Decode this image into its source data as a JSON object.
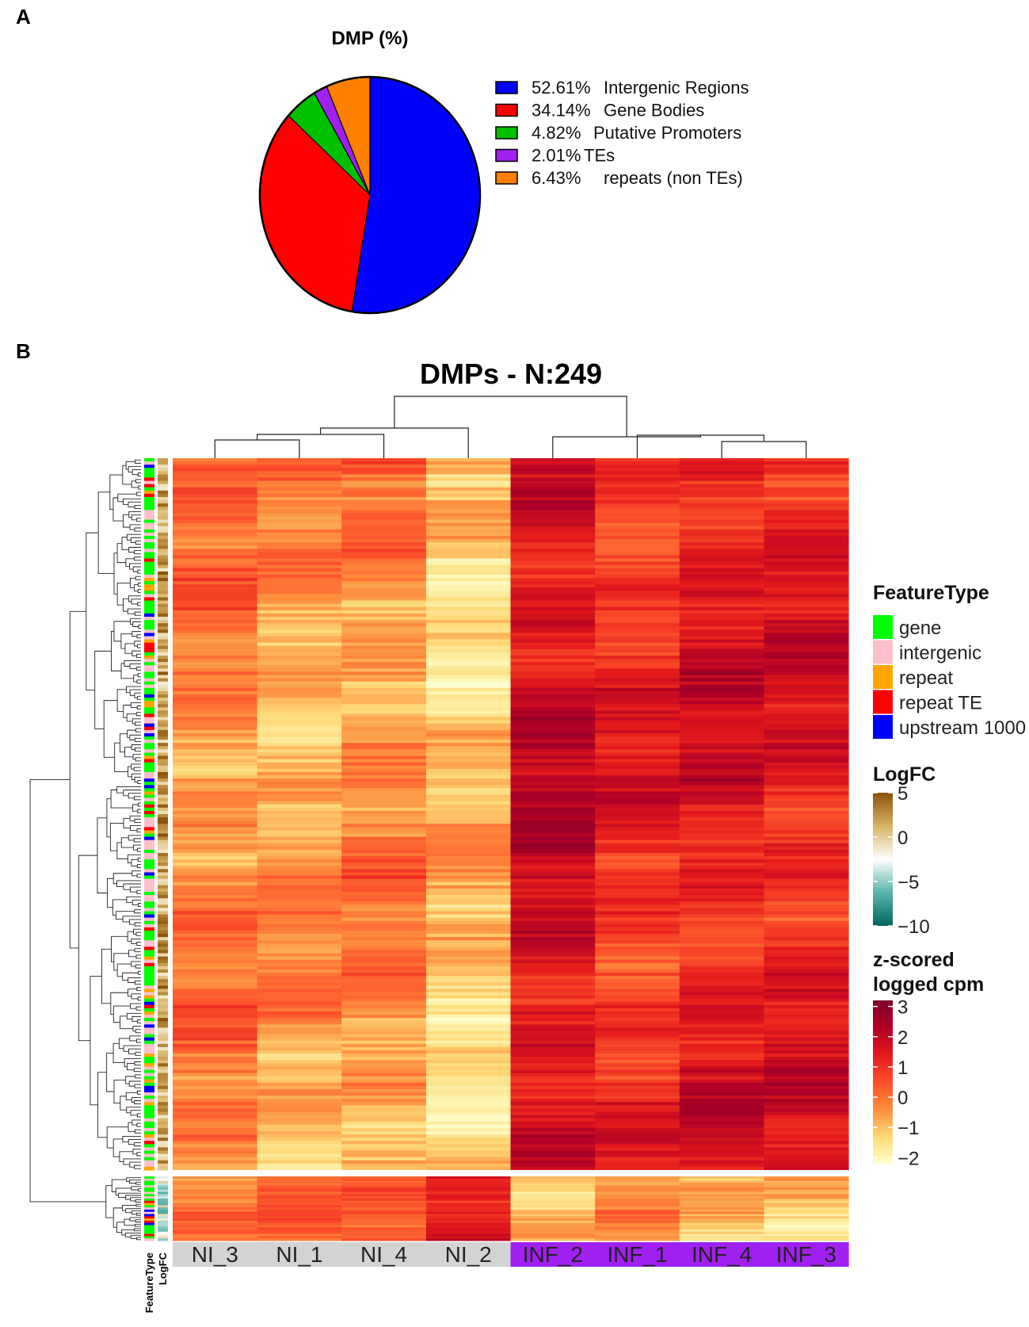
{
  "panel_a_label": "A",
  "panel_b_label": "B",
  "chart_data": [
    {
      "type": "pie",
      "title": "DMP (%)",
      "slices": [
        {
          "value": 52.61,
          "pct_label": "52.61%",
          "name": "Intergenic Regions",
          "color": "#0000ff"
        },
        {
          "value": 34.14,
          "pct_label": "34.14%",
          "name": "Gene Bodies",
          "color": "#ff0000"
        },
        {
          "value": 4.82,
          "pct_label": "4.82%",
          "name": "Putative Promoters",
          "color": "#00c000"
        },
        {
          "value": 2.01,
          "pct_label": "2.01%",
          "name": "TEs",
          "color": "#a020f0"
        },
        {
          "value": 6.43,
          "pct_label": "6.43%",
          "name": "repeats (non TEs)",
          "color": "#ff7f00"
        }
      ]
    },
    {
      "type": "heatmap",
      "title": "DMPs - N:249",
      "n_rows": 249,
      "columns": [
        {
          "label": "NI_3",
          "group": "NI",
          "color": "#d3d3d3",
          "mean": -0.2
        },
        {
          "label": "NI_1",
          "group": "NI",
          "color": "#d3d3d3",
          "mean": -0.6
        },
        {
          "label": "NI_4",
          "group": "NI",
          "color": "#d3d3d3",
          "mean": -0.3
        },
        {
          "label": "NI_2",
          "group": "NI",
          "color": "#d3d3d3",
          "mean": -1.1
        },
        {
          "label": "INF_2",
          "group": "INF",
          "color": "#a020f0",
          "mean": 1.8
        },
        {
          "label": "INF_1",
          "group": "INF",
          "color": "#a020f0",
          "mean": 1.1
        },
        {
          "label": "INF_4",
          "group": "INF",
          "color": "#a020f0",
          "mean": 1.5
        },
        {
          "label": "INF_3",
          "group": "INF",
          "color": "#a020f0",
          "mean": 1.4
        }
      ],
      "row_clusters": [
        {
          "name": "upper",
          "n_rows": 220
        },
        {
          "name": "lower",
          "n_rows": 29
        }
      ],
      "annotation_labels": [
        "FeatureType",
        "LogFC"
      ],
      "feature_legend": {
        "title": "FeatureType",
        "items": [
          {
            "label": "gene",
            "color": "#00ff00"
          },
          {
            "label": "intergenic",
            "color": "#ffc0cb"
          },
          {
            "label": "repeat",
            "color": "#ffa500"
          },
          {
            "label": "repeat TE",
            "color": "#ff0000"
          },
          {
            "label": "upstream 1000",
            "color": "#0000ff"
          }
        ]
      },
      "logfc_legend": {
        "title": "LogFC",
        "ticks": [
          5,
          0,
          -5,
          -10
        ],
        "range": [
          -10,
          5
        ],
        "colors": [
          "#01665e",
          "#5ab4ac",
          "#ffffff",
          "#d8b365",
          "#8c510a"
        ]
      },
      "z_legend": {
        "title_line1": "z-scored",
        "title_line2": "logged cpm",
        "ticks": [
          3,
          2,
          1,
          0,
          -1,
          -2
        ],
        "range": [
          -2.2,
          3.2
        ],
        "colors": [
          "#ffffcc",
          "#fed976",
          "#fd8d3c",
          "#fc4e2a",
          "#e31a1c",
          "#b10026",
          "#800026"
        ]
      }
    }
  ]
}
